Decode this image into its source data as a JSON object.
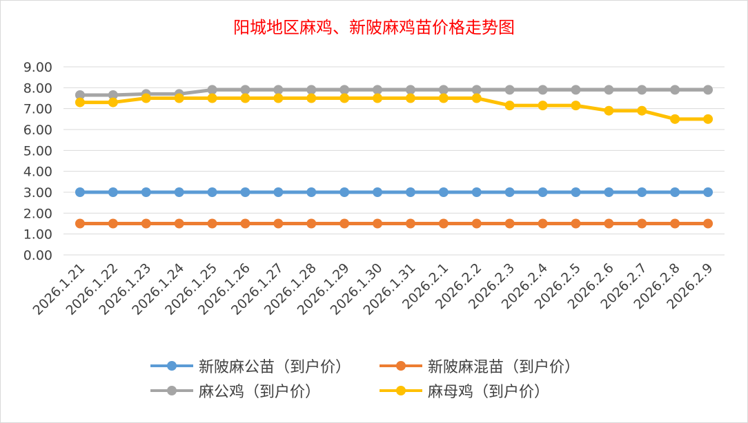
{
  "chart_data": {
    "type": "line",
    "title": "阳城地区麻鸡、新陂麻鸡苗价格走势图",
    "categories": [
      "2026.1.21",
      "2026.1.22",
      "2026.1.23",
      "2026.1.24",
      "2026.1.25",
      "2026.1.26",
      "2026.1.27",
      "2026.1.28",
      "2026.1.29",
      "2026.1.30",
      "2026.1.31",
      "2026.2.1",
      "2026.2.2",
      "2026.2.3",
      "2026.2.4",
      "2026.2.5",
      "2026.2.6",
      "2026.2.7",
      "2026.2.8",
      "2026.2.9"
    ],
    "ylim": [
      0,
      9
    ],
    "yticks": [
      "0.00",
      "1.00",
      "2.00",
      "3.00",
      "4.00",
      "5.00",
      "6.00",
      "7.00",
      "8.00",
      "9.00"
    ],
    "grid": true,
    "legend_position": "bottom",
    "series": [
      {
        "name": "新陂麻公苗（到户价）",
        "color": "#5b9bd5",
        "values": [
          3,
          3,
          3,
          3,
          3,
          3,
          3,
          3,
          3,
          3,
          3,
          3,
          3,
          3,
          3,
          3,
          3,
          3,
          3,
          3
        ]
      },
      {
        "name": "新陂麻混苗（到户价）",
        "color": "#ed7d31",
        "values": [
          1.5,
          1.5,
          1.5,
          1.5,
          1.5,
          1.5,
          1.5,
          1.5,
          1.5,
          1.5,
          1.5,
          1.5,
          1.5,
          1.5,
          1.5,
          1.5,
          1.5,
          1.5,
          1.5,
          1.5
        ]
      },
      {
        "name": "麻公鸡（到户价）",
        "color": "#a5a5a5",
        "values": [
          7.65,
          7.65,
          7.7,
          7.7,
          7.9,
          7.9,
          7.9,
          7.9,
          7.9,
          7.9,
          7.9,
          7.9,
          7.9,
          7.9,
          7.9,
          7.9,
          7.9,
          7.9,
          7.9,
          7.9
        ]
      },
      {
        "name": "麻母鸡（到户价）",
        "color": "#ffc000",
        "values": [
          7.3,
          7.3,
          7.5,
          7.5,
          7.5,
          7.5,
          7.5,
          7.5,
          7.5,
          7.5,
          7.5,
          7.5,
          7.5,
          7.15,
          7.15,
          7.15,
          6.9,
          6.9,
          6.5,
          6.5
        ]
      }
    ]
  }
}
